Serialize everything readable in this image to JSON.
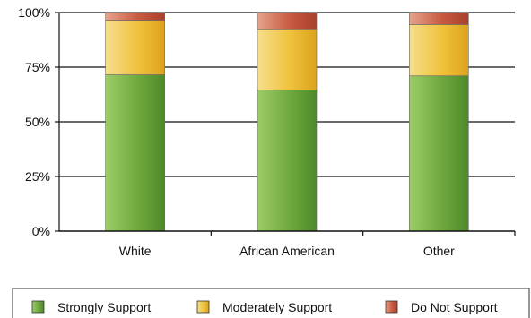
{
  "chart_data": {
    "type": "bar",
    "stacked": true,
    "categories": [
      "White",
      "African American",
      "Other"
    ],
    "series": [
      {
        "name": "Strongly Support",
        "values": [
          71.5,
          64.5,
          71
        ],
        "color": "#6fa83e"
      },
      {
        "name": "Moderately Support",
        "values": [
          25,
          28,
          23.5
        ],
        "color": "#f0c23c"
      },
      {
        "name": "Do Not Support",
        "values": [
          3.5,
          7.5,
          5.5
        ],
        "color": "#c85a40"
      }
    ],
    "y_ticks": [
      "0%",
      "25%",
      "50%",
      "75%",
      "100%"
    ],
    "ylim": [
      0,
      100
    ],
    "grid": true,
    "legend_position": "bottom"
  }
}
